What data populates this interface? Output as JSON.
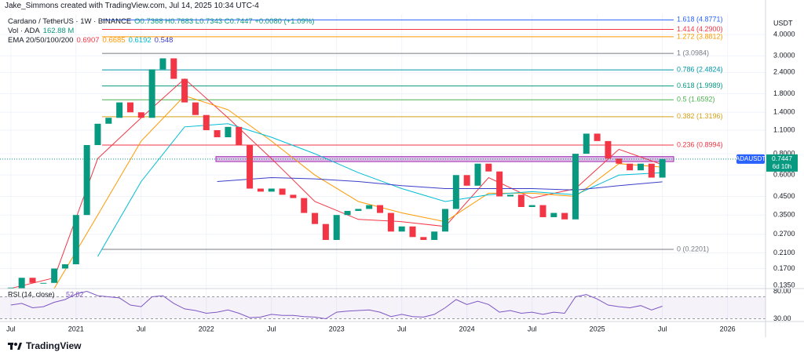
{
  "header": {
    "caption": "Jake_Simmons created with TradingView.com, Jul 14, 2025 10:34 UTC-4"
  },
  "footer": {
    "brand": "TradingView"
  },
  "chart_data": {
    "type": "candlestick",
    "title": "Cardano / TetherUS · 1W · BINANCE",
    "ohlc_label": "O0.7368 H0.7683 L0.7343 C0.7447 +0.0080 (+1.09%)",
    "volume_label": "Vol · ADA",
    "volume_value": "162.88 M",
    "indicator_label": "EMA 20/50/100/200",
    "currency": "USDT",
    "symbol": "ADAUSDT",
    "countdown": "6d 10h",
    "log_scale": true,
    "grid": true,
    "xlim": [
      -1,
      69.5
    ],
    "xticks": [
      {
        "value": 0,
        "label": "Jul"
      },
      {
        "value": 6,
        "label": "2021"
      },
      {
        "value": 12,
        "label": "Jul"
      },
      {
        "value": 18,
        "label": "2022"
      },
      {
        "value": 24,
        "label": "Jul"
      },
      {
        "value": 30,
        "label": "2023"
      },
      {
        "value": 36,
        "label": "Jul"
      },
      {
        "value": 42,
        "label": "2024"
      },
      {
        "value": 48,
        "label": "Jul"
      },
      {
        "value": 54,
        "label": "2025"
      },
      {
        "value": 60,
        "label": "Jul"
      },
      {
        "value": 66,
        "label": "2026"
      }
    ],
    "ylim": [
      0.1297,
      5.27
    ],
    "yticks": [
      {
        "value": 4,
        "label": "4.0000"
      },
      {
        "value": 3,
        "label": "3.0000"
      },
      {
        "value": 2.4,
        "label": "2.4000"
      },
      {
        "value": 1.8,
        "label": "1.8000"
      },
      {
        "value": 1.4,
        "label": "1.4000"
      },
      {
        "value": 1.1,
        "label": "1.1000"
      },
      {
        "value": 0.8,
        "label": "0.8000"
      },
      {
        "value": 0.6,
        "label": "0.6000"
      },
      {
        "value": 0.45,
        "label": "0.4500"
      },
      {
        "value": 0.35,
        "label": "0.3500"
      },
      {
        "value": 0.27,
        "label": "0.2700"
      },
      {
        "value": 0.21,
        "label": "0.2100"
      },
      {
        "value": 0.17,
        "label": "0.1700"
      },
      {
        "value": 0.135,
        "label": "0.1350"
      }
    ],
    "up_color": "#089981",
    "down_color": "#f23645",
    "series": [
      {
        "name": "ADAUSDT",
        "color": "#089981",
        "x": [
          0,
          1,
          2,
          3,
          4,
          5,
          6,
          7,
          8,
          9,
          10,
          11,
          12,
          13,
          14,
          15,
          16,
          17,
          18,
          19,
          20,
          21,
          22,
          23,
          24,
          25,
          26,
          27,
          28,
          29,
          30,
          31,
          32,
          33,
          34,
          35,
          36,
          37,
          38,
          39,
          40,
          41,
          42,
          43,
          44,
          45,
          46,
          47,
          48,
          49,
          50,
          51,
          52,
          53,
          54,
          55,
          56,
          57,
          58,
          59,
          60
        ],
        "values": [
          0.13,
          0.15,
          0.14,
          0.14,
          0.17,
          0.18,
          0.35,
          0.9,
          1.2,
          1.3,
          1.6,
          1.4,
          1.3,
          2.5,
          2.9,
          2.2,
          1.6,
          1.35,
          1.1,
          1.0,
          1.15,
          0.9,
          0.5,
          0.48,
          0.5,
          0.46,
          0.44,
          0.36,
          0.31,
          0.25,
          0.35,
          0.37,
          0.38,
          0.4,
          0.36,
          0.28,
          0.3,
          0.26,
          0.25,
          0.28,
          0.38,
          0.6,
          0.52,
          0.7,
          0.63,
          0.45,
          0.46,
          0.39,
          0.4,
          0.34,
          0.36,
          0.33,
          0.8,
          1.05,
          0.95,
          0.75,
          0.7,
          0.64,
          0.7,
          0.58,
          0.7447
        ]
      },
      {
        "color": "#f23645",
        "x": [
          0,
          4,
          8,
          12,
          16,
          20,
          24,
          28,
          32,
          36,
          40,
          44,
          48,
          52,
          56,
          60
        ],
        "values": [
          0.13,
          0.15,
          0.75,
          1.3,
          2.2,
          1.3,
          0.75,
          0.42,
          0.33,
          0.32,
          0.3,
          0.58,
          0.44,
          0.5,
          0.85,
          0.6907
        ]
      },
      {
        "color": "#ff9800",
        "x": [
          4,
          8,
          12,
          16,
          20,
          24,
          28,
          32,
          36,
          40,
          44,
          48,
          52,
          56,
          60
        ],
        "values": [
          0.13,
          0.35,
          0.95,
          1.75,
          1.45,
          0.95,
          0.6,
          0.42,
          0.36,
          0.32,
          0.47,
          0.47,
          0.45,
          0.7,
          0.6685
        ]
      },
      {
        "color": "#00bcd4",
        "x": [
          8,
          12,
          16,
          20,
          24,
          28,
          32,
          36,
          40,
          44,
          48,
          52,
          56,
          60
        ],
        "values": [
          0.2,
          0.55,
          1.15,
          1.2,
          1.0,
          0.8,
          0.62,
          0.5,
          0.42,
          0.46,
          0.48,
          0.46,
          0.6,
          0.6192
        ]
      },
      {
        "color": "#3a3fc7",
        "x": [
          19,
          24,
          28,
          32,
          36,
          40,
          44,
          48,
          52,
          56,
          60
        ],
        "values": [
          0.55,
          0.58,
          0.57,
          0.55,
          0.52,
          0.5,
          0.5,
          0.5,
          0.49,
          0.52,
          0.548
        ]
      }
    ],
    "fib": [
      {
        "value": 4.8771,
        "label": "1.618 (4.8771)",
        "color": "#2962ff"
      },
      {
        "value": 4.29,
        "label": "1.414 (4.2900)",
        "color": "#f23645"
      },
      {
        "value": 3.8812,
        "label": "1.272 (3.8812)",
        "color": "#ff9800"
      },
      {
        "value": 3.0984,
        "label": "1 (3.0984)",
        "color": "#787b86"
      },
      {
        "value": 2.4824,
        "label": "0.786 (2.4824)",
        "color": "#0097a7"
      },
      {
        "value": 1.9989,
        "label": "0.618 (1.9989)",
        "color": "#089981"
      },
      {
        "value": 1.6592,
        "label": "0.5 (1.6592)",
        "color": "#4caf50"
      },
      {
        "value": 1.3196,
        "label": "0.382 (1.3196)",
        "color": "#d4a017"
      },
      {
        "value": 0.8994,
        "label": "0.236 (0.8994)",
        "color": "#f23645"
      },
      {
        "value": 0.2201,
        "label": "0 (0.2201)",
        "color": "#787b86"
      }
    ],
    "zone": [
      0.72,
      0.77
    ],
    "zone_color": "#9c27b0",
    "rsi": {
      "label": "RSI (14, close)",
      "color": "#7e57c2",
      "ylim": [
        25,
        85
      ],
      "yticks": [
        {
          "value": 80,
          "label": "80.00"
        },
        {
          "value": 30,
          "label": "30.00"
        }
      ],
      "band": [
        30,
        70
      ],
      "x": [
        0,
        1,
        2,
        3,
        4,
        5,
        6,
        7,
        8,
        9,
        10,
        11,
        12,
        13,
        14,
        15,
        16,
        17,
        18,
        19,
        20,
        21,
        22,
        23,
        24,
        25,
        26,
        27,
        28,
        29,
        30,
        31,
        32,
        33,
        34,
        35,
        36,
        37,
        38,
        39,
        40,
        41,
        42,
        43,
        44,
        45,
        46,
        47,
        48,
        49,
        50,
        51,
        52,
        53,
        54,
        55,
        56,
        57,
        58,
        59,
        60
      ],
      "values": [
        55,
        58,
        50,
        52,
        60,
        65,
        75,
        80,
        72,
        70,
        68,
        55,
        52,
        70,
        72,
        58,
        48,
        45,
        40,
        42,
        46,
        40,
        32,
        33,
        38,
        36,
        36,
        34,
        33,
        30,
        42,
        44,
        45,
        46,
        42,
        34,
        38,
        34,
        33,
        38,
        50,
        65,
        56,
        62,
        56,
        42,
        45,
        40,
        42,
        38,
        42,
        40,
        70,
        74,
        66,
        55,
        52,
        50,
        54,
        46,
        52.82
      ]
    }
  }
}
